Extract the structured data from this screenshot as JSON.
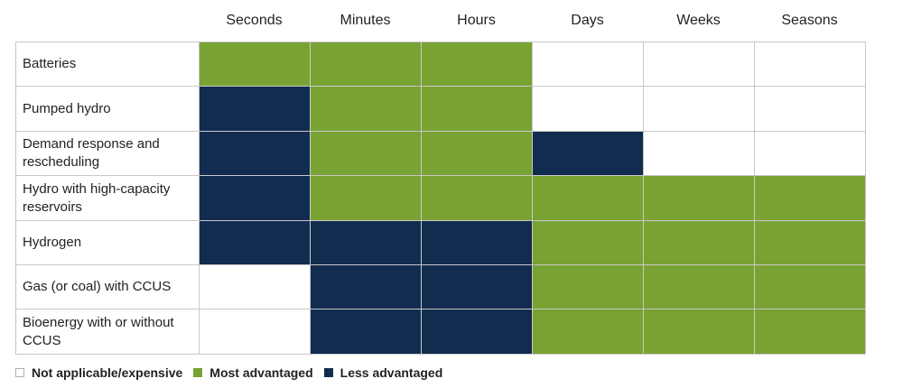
{
  "chart_data": {
    "type": "heatmap",
    "columns": [
      "Seconds",
      "Minutes",
      "Hours",
      "Days",
      "Weeks",
      "Seasons"
    ],
    "rows": [
      {
        "label": "Batteries",
        "values": [
          "most",
          "most",
          "most",
          "na",
          "na",
          "na"
        ]
      },
      {
        "label": "Pumped hydro",
        "values": [
          "less",
          "most",
          "most",
          "na",
          "na",
          "na"
        ]
      },
      {
        "label": "Demand response and rescheduling",
        "values": [
          "less",
          "most",
          "most",
          "less",
          "na",
          "na"
        ]
      },
      {
        "label": "Hydro with high-capacity reservoirs",
        "values": [
          "less",
          "most",
          "most",
          "most",
          "most",
          "most"
        ]
      },
      {
        "label": "Hydrogen",
        "values": [
          "less",
          "less",
          "less",
          "most",
          "most",
          "most"
        ]
      },
      {
        "label": "Gas (or coal) with CCUS",
        "values": [
          "na",
          "less",
          "less",
          "most",
          "most",
          "most"
        ]
      },
      {
        "label": "Bioenergy with or without CCUS",
        "values": [
          "na",
          "less",
          "less",
          "most",
          "most",
          "most"
        ]
      }
    ],
    "categories": {
      "na": {
        "label": "Not applicable/expensive",
        "color": "#ffffff"
      },
      "most": {
        "label": "Most advantaged",
        "color": "#78a232"
      },
      "less": {
        "label": "Less advantaged",
        "color": "#122c4f"
      }
    },
    "legend_order": [
      "na",
      "most",
      "less"
    ],
    "legend_position": "bottom-left",
    "grid_color": "#c8c8c8"
  }
}
